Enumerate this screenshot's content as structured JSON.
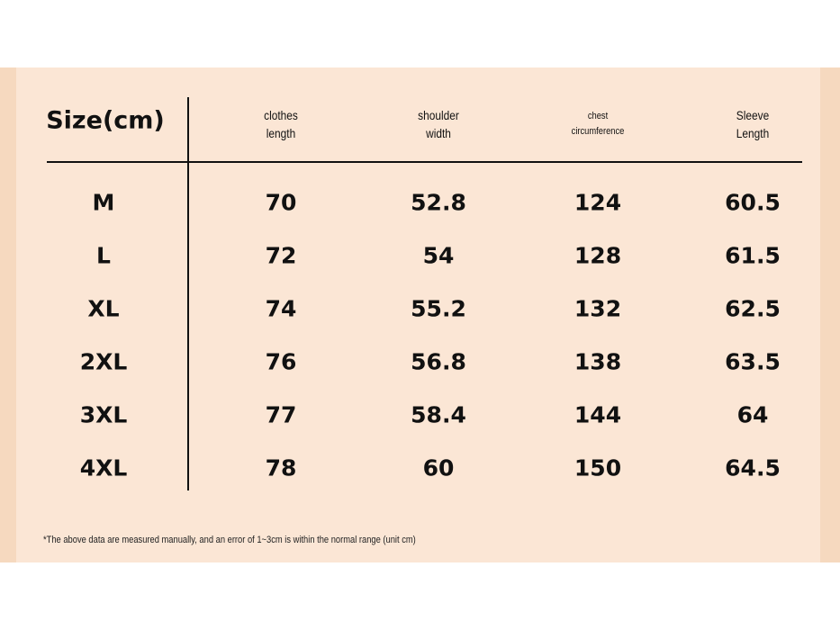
{
  "table": {
    "title": "Size(cm)",
    "columns": [
      [
        "clothes",
        "length"
      ],
      [
        "shoulder",
        "width"
      ],
      [
        "chest",
        "circumference"
      ],
      [
        "Sleeve",
        "Length"
      ]
    ],
    "rows": [
      [
        "M",
        70,
        52.8,
        124,
        60.5
      ],
      [
        "L",
        72,
        54,
        128,
        61.5
      ],
      [
        "XL",
        74,
        55.2,
        132,
        62.5
      ],
      [
        "2XL",
        76,
        56.8,
        138,
        63.5
      ],
      [
        "3XL",
        77,
        58.4,
        144,
        64
      ],
      [
        "4XL",
        78,
        60,
        150,
        64.5
      ]
    ],
    "note": "*The above data are measured manually, and an error of 1~3cm is within the normal range (unit cm)"
  }
}
